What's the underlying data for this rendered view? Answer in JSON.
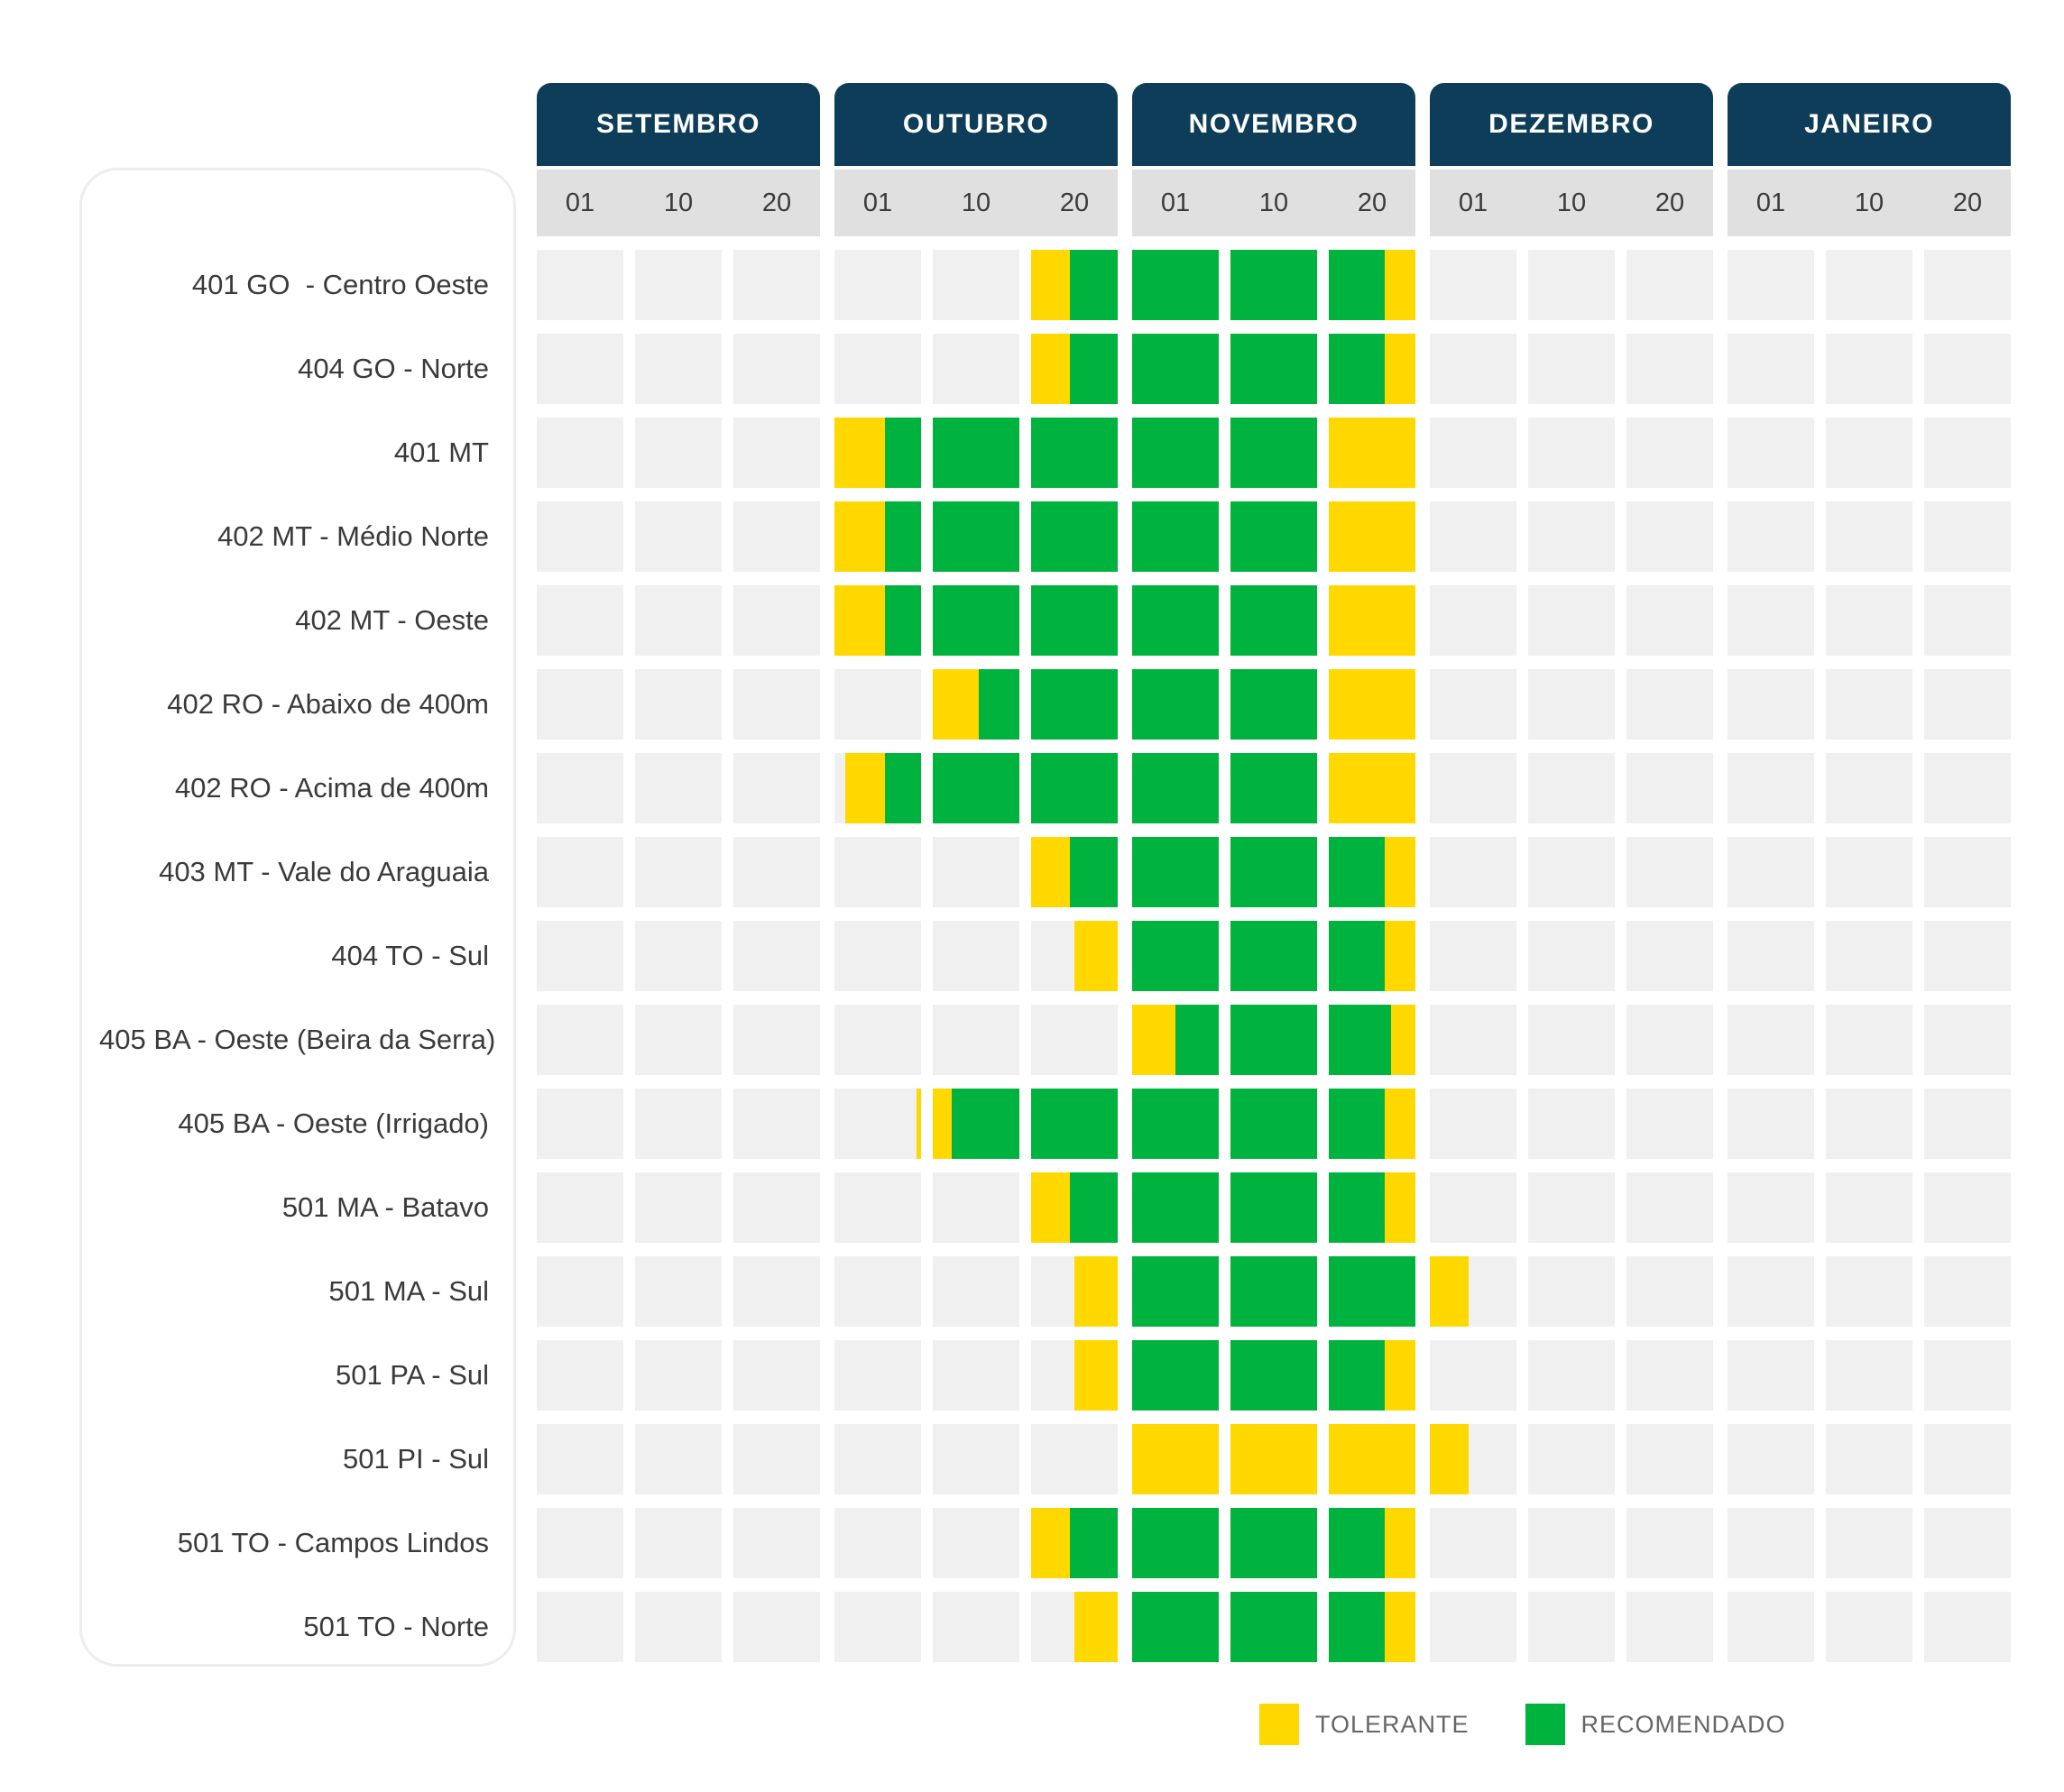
{
  "chart_data": {
    "type": "gantt",
    "description": "Planting window calendar: rows are regions, columns are months split in 10-day periods (01/10/20). Units of segment start/end are cell indexes, 3 cells per month, 0 = start of SETEMBRO.",
    "months": [
      "SETEMBRO",
      "OUTUBRO",
      "NOVEMBRO",
      "DEZEMBRO",
      "JANEIRO"
    ],
    "ticks": [
      "01",
      "10",
      "20"
    ],
    "legend": [
      {
        "label": "TOLERANTE",
        "color": "#FFD800"
      },
      {
        "label": "RECOMENDADO",
        "color": "#00B33E"
      }
    ],
    "colors": {
      "header_bg": "#0d3d58",
      "subheader_bg": "#e0e0e0",
      "cell_bg": "#f0f0f0",
      "tolerante": "#FFD800",
      "recomendado": "#00B33E"
    },
    "rows": [
      {
        "label": "401 GO  - Centro Oeste",
        "segments": [
          {
            "type": "TOLERANTE",
            "start": 5.0,
            "end": 5.45
          },
          {
            "type": "RECOMENDADO",
            "start": 5.45,
            "end": 8.65
          },
          {
            "type": "TOLERANTE",
            "start": 8.65,
            "end": 9.0
          }
        ]
      },
      {
        "label": "404 GO - Norte",
        "segments": [
          {
            "type": "TOLERANTE",
            "start": 5.0,
            "end": 5.45
          },
          {
            "type": "RECOMENDADO",
            "start": 5.45,
            "end": 8.65
          },
          {
            "type": "TOLERANTE",
            "start": 8.65,
            "end": 9.0
          }
        ]
      },
      {
        "label": "401 MT",
        "segments": [
          {
            "type": "TOLERANTE",
            "start": 3.0,
            "end": 3.58
          },
          {
            "type": "RECOMENDADO",
            "start": 3.58,
            "end": 8.0
          },
          {
            "type": "TOLERANTE",
            "start": 8.0,
            "end": 9.0
          }
        ]
      },
      {
        "label": "402 MT - Médio Norte",
        "segments": [
          {
            "type": "TOLERANTE",
            "start": 3.0,
            "end": 3.58
          },
          {
            "type": "RECOMENDADO",
            "start": 3.58,
            "end": 8.0
          },
          {
            "type": "TOLERANTE",
            "start": 8.0,
            "end": 9.0
          }
        ]
      },
      {
        "label": "402 MT - Oeste",
        "segments": [
          {
            "type": "TOLERANTE",
            "start": 3.0,
            "end": 3.58
          },
          {
            "type": "RECOMENDADO",
            "start": 3.58,
            "end": 8.0
          },
          {
            "type": "TOLERANTE",
            "start": 8.0,
            "end": 9.0
          }
        ]
      },
      {
        "label": "402 RO - Abaixo de 400m",
        "segments": [
          {
            "type": "TOLERANTE",
            "start": 4.0,
            "end": 4.53
          },
          {
            "type": "RECOMENDADO",
            "start": 4.53,
            "end": 8.0
          },
          {
            "type": "TOLERANTE",
            "start": 8.0,
            "end": 9.0
          }
        ]
      },
      {
        "label": "402 RO - Acima de 400m",
        "segments": [
          {
            "type": "TOLERANTE",
            "start": 3.13,
            "end": 3.58
          },
          {
            "type": "RECOMENDADO",
            "start": 3.58,
            "end": 8.0
          },
          {
            "type": "TOLERANTE",
            "start": 8.0,
            "end": 9.0
          }
        ]
      },
      {
        "label": "403 MT - Vale do Araguaia",
        "segments": [
          {
            "type": "TOLERANTE",
            "start": 5.0,
            "end": 5.45
          },
          {
            "type": "RECOMENDADO",
            "start": 5.45,
            "end": 8.65
          },
          {
            "type": "TOLERANTE",
            "start": 8.65,
            "end": 9.0
          }
        ]
      },
      {
        "label": "404 TO - Sul",
        "segments": [
          {
            "type": "TOLERANTE",
            "start": 5.5,
            "end": 6.0
          },
          {
            "type": "RECOMENDADO",
            "start": 6.0,
            "end": 8.65
          },
          {
            "type": "TOLERANTE",
            "start": 8.65,
            "end": 9.0
          }
        ]
      },
      {
        "label": "405 BA - Oeste (Beira da Serra)",
        "segments": [
          {
            "type": "TOLERANTE",
            "start": 6.0,
            "end": 6.5
          },
          {
            "type": "RECOMENDADO",
            "start": 6.5,
            "end": 8.72
          },
          {
            "type": "TOLERANTE",
            "start": 8.72,
            "end": 9.0
          }
        ]
      },
      {
        "label": "405 BA - Oeste (Irrigado)",
        "segments": [
          {
            "type": "TOLERANTE",
            "start": 3.95,
            "end": 4.22
          },
          {
            "type": "RECOMENDADO",
            "start": 4.22,
            "end": 8.65
          },
          {
            "type": "TOLERANTE",
            "start": 8.65,
            "end": 9.0
          }
        ]
      },
      {
        "label": "501 MA - Batavo",
        "segments": [
          {
            "type": "TOLERANTE",
            "start": 5.0,
            "end": 5.45
          },
          {
            "type": "RECOMENDADO",
            "start": 5.45,
            "end": 8.65
          },
          {
            "type": "TOLERANTE",
            "start": 8.65,
            "end": 9.0
          }
        ]
      },
      {
        "label": "501 MA - Sul",
        "segments": [
          {
            "type": "TOLERANTE",
            "start": 5.5,
            "end": 6.0
          },
          {
            "type": "RECOMENDADO",
            "start": 6.0,
            "end": 9.0
          },
          {
            "type": "TOLERANTE",
            "start": 9.0,
            "end": 9.45
          }
        ]
      },
      {
        "label": "501 PA - Sul",
        "segments": [
          {
            "type": "TOLERANTE",
            "start": 5.5,
            "end": 6.0
          },
          {
            "type": "RECOMENDADO",
            "start": 6.0,
            "end": 8.65
          },
          {
            "type": "TOLERANTE",
            "start": 8.65,
            "end": 9.0
          }
        ]
      },
      {
        "label": "501 PI - Sul",
        "segments": [
          {
            "type": "TOLERANTE",
            "start": 6.0,
            "end": 9.45
          }
        ]
      },
      {
        "label": "501 TO - Campos Lindos",
        "segments": [
          {
            "type": "TOLERANTE",
            "start": 5.0,
            "end": 5.45
          },
          {
            "type": "RECOMENDADO",
            "start": 5.45,
            "end": 8.65
          },
          {
            "type": "TOLERANTE",
            "start": 8.65,
            "end": 9.0
          }
        ]
      },
      {
        "label": "501 TO - Norte",
        "segments": [
          {
            "type": "TOLERANTE",
            "start": 5.5,
            "end": 6.0
          },
          {
            "type": "RECOMENDADO",
            "start": 6.0,
            "end": 8.65
          },
          {
            "type": "TOLERANTE",
            "start": 8.65,
            "end": 9.0
          }
        ]
      }
    ]
  }
}
